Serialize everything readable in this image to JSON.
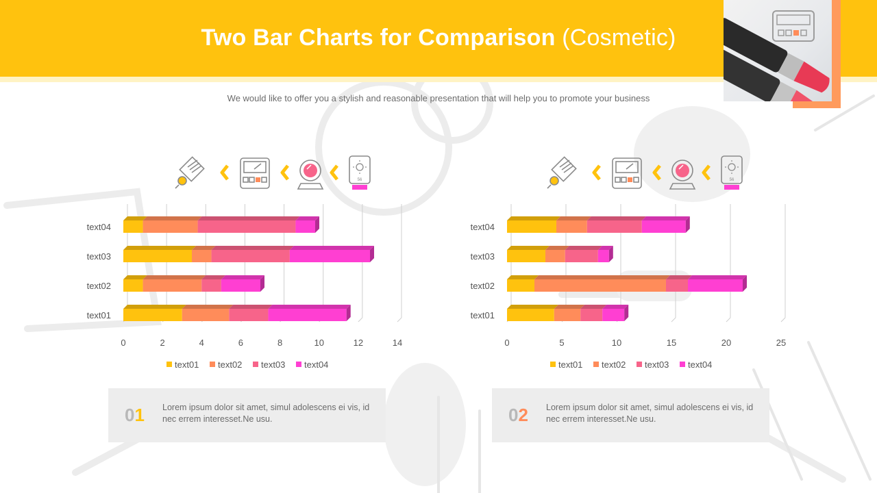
{
  "header": {
    "title_bold": "Two Bar Charts for Comparison",
    "title_paren": "(Cosmetic)",
    "subtitle": "We would like to offer you a stylish and reasonable presentation that will help you to promote your business"
  },
  "colors": {
    "header_yellow": "#ffc20e",
    "header_strip": "#fff3c4",
    "accent_orange": "#ff9a5c",
    "series": [
      "#ffc20e",
      "#ff8c5a",
      "#f7648a",
      "#ff3fd2"
    ],
    "axis_text": "#555555",
    "gridline": "#cfcfcf"
  },
  "icons": [
    "brush-icon",
    "chevron-left-icon",
    "eyeshadow-palette-icon",
    "chevron-left-icon",
    "compact-mirror-icon",
    "chevron-left-icon",
    "sunscreen-icon"
  ],
  "sunscreen_label": "56",
  "chart_data": [
    {
      "type": "bar",
      "orientation": "horizontal",
      "stacked": true,
      "categories": [
        "text01",
        "text02",
        "text03",
        "text04"
      ],
      "series": [
        {
          "name": "text01",
          "values": [
            3.0,
            1.0,
            3.5,
            1.0
          ]
        },
        {
          "name": "text02",
          "values": [
            2.4,
            3.0,
            1.0,
            2.8
          ]
        },
        {
          "name": "text03",
          "values": [
            2.0,
            1.0,
            4.0,
            5.0
          ]
        },
        {
          "name": "text04",
          "values": [
            4.0,
            2.0,
            4.1,
            1.0
          ]
        }
      ],
      "xlim": [
        0,
        14
      ],
      "xticks": [
        0,
        2,
        4,
        6,
        8,
        10,
        12,
        14
      ],
      "grid": true,
      "legend": "bottom"
    },
    {
      "type": "bar",
      "orientation": "horizontal",
      "stacked": true,
      "categories": [
        "text01",
        "text02",
        "text03",
        "text04"
      ],
      "series": [
        {
          "name": "text01",
          "values": [
            4.3,
            2.5,
            3.5,
            4.5
          ]
        },
        {
          "name": "text02",
          "values": [
            2.4,
            12.0,
            1.8,
            2.8
          ]
        },
        {
          "name": "text03",
          "values": [
            2.0,
            2.0,
            3.0,
            5.0
          ]
        },
        {
          "name": "text04",
          "values": [
            2.0,
            5.0,
            1.0,
            4.0
          ]
        }
      ],
      "xlim": [
        0,
        25
      ],
      "xticks": [
        0,
        5,
        10,
        15,
        20,
        25
      ],
      "grid": true,
      "legend": "bottom"
    }
  ],
  "info_boxes": [
    {
      "num_first": "0",
      "num_second": "1",
      "text": "Lorem ipsum dolor sit amet, simul adolescens ei vis, id nec errem interesset.Ne usu."
    },
    {
      "num_first": "0",
      "num_second": "2",
      "text": "Lorem ipsum dolor sit amet, simul adolescens ei vis, id nec errem interesset.Ne usu."
    }
  ]
}
